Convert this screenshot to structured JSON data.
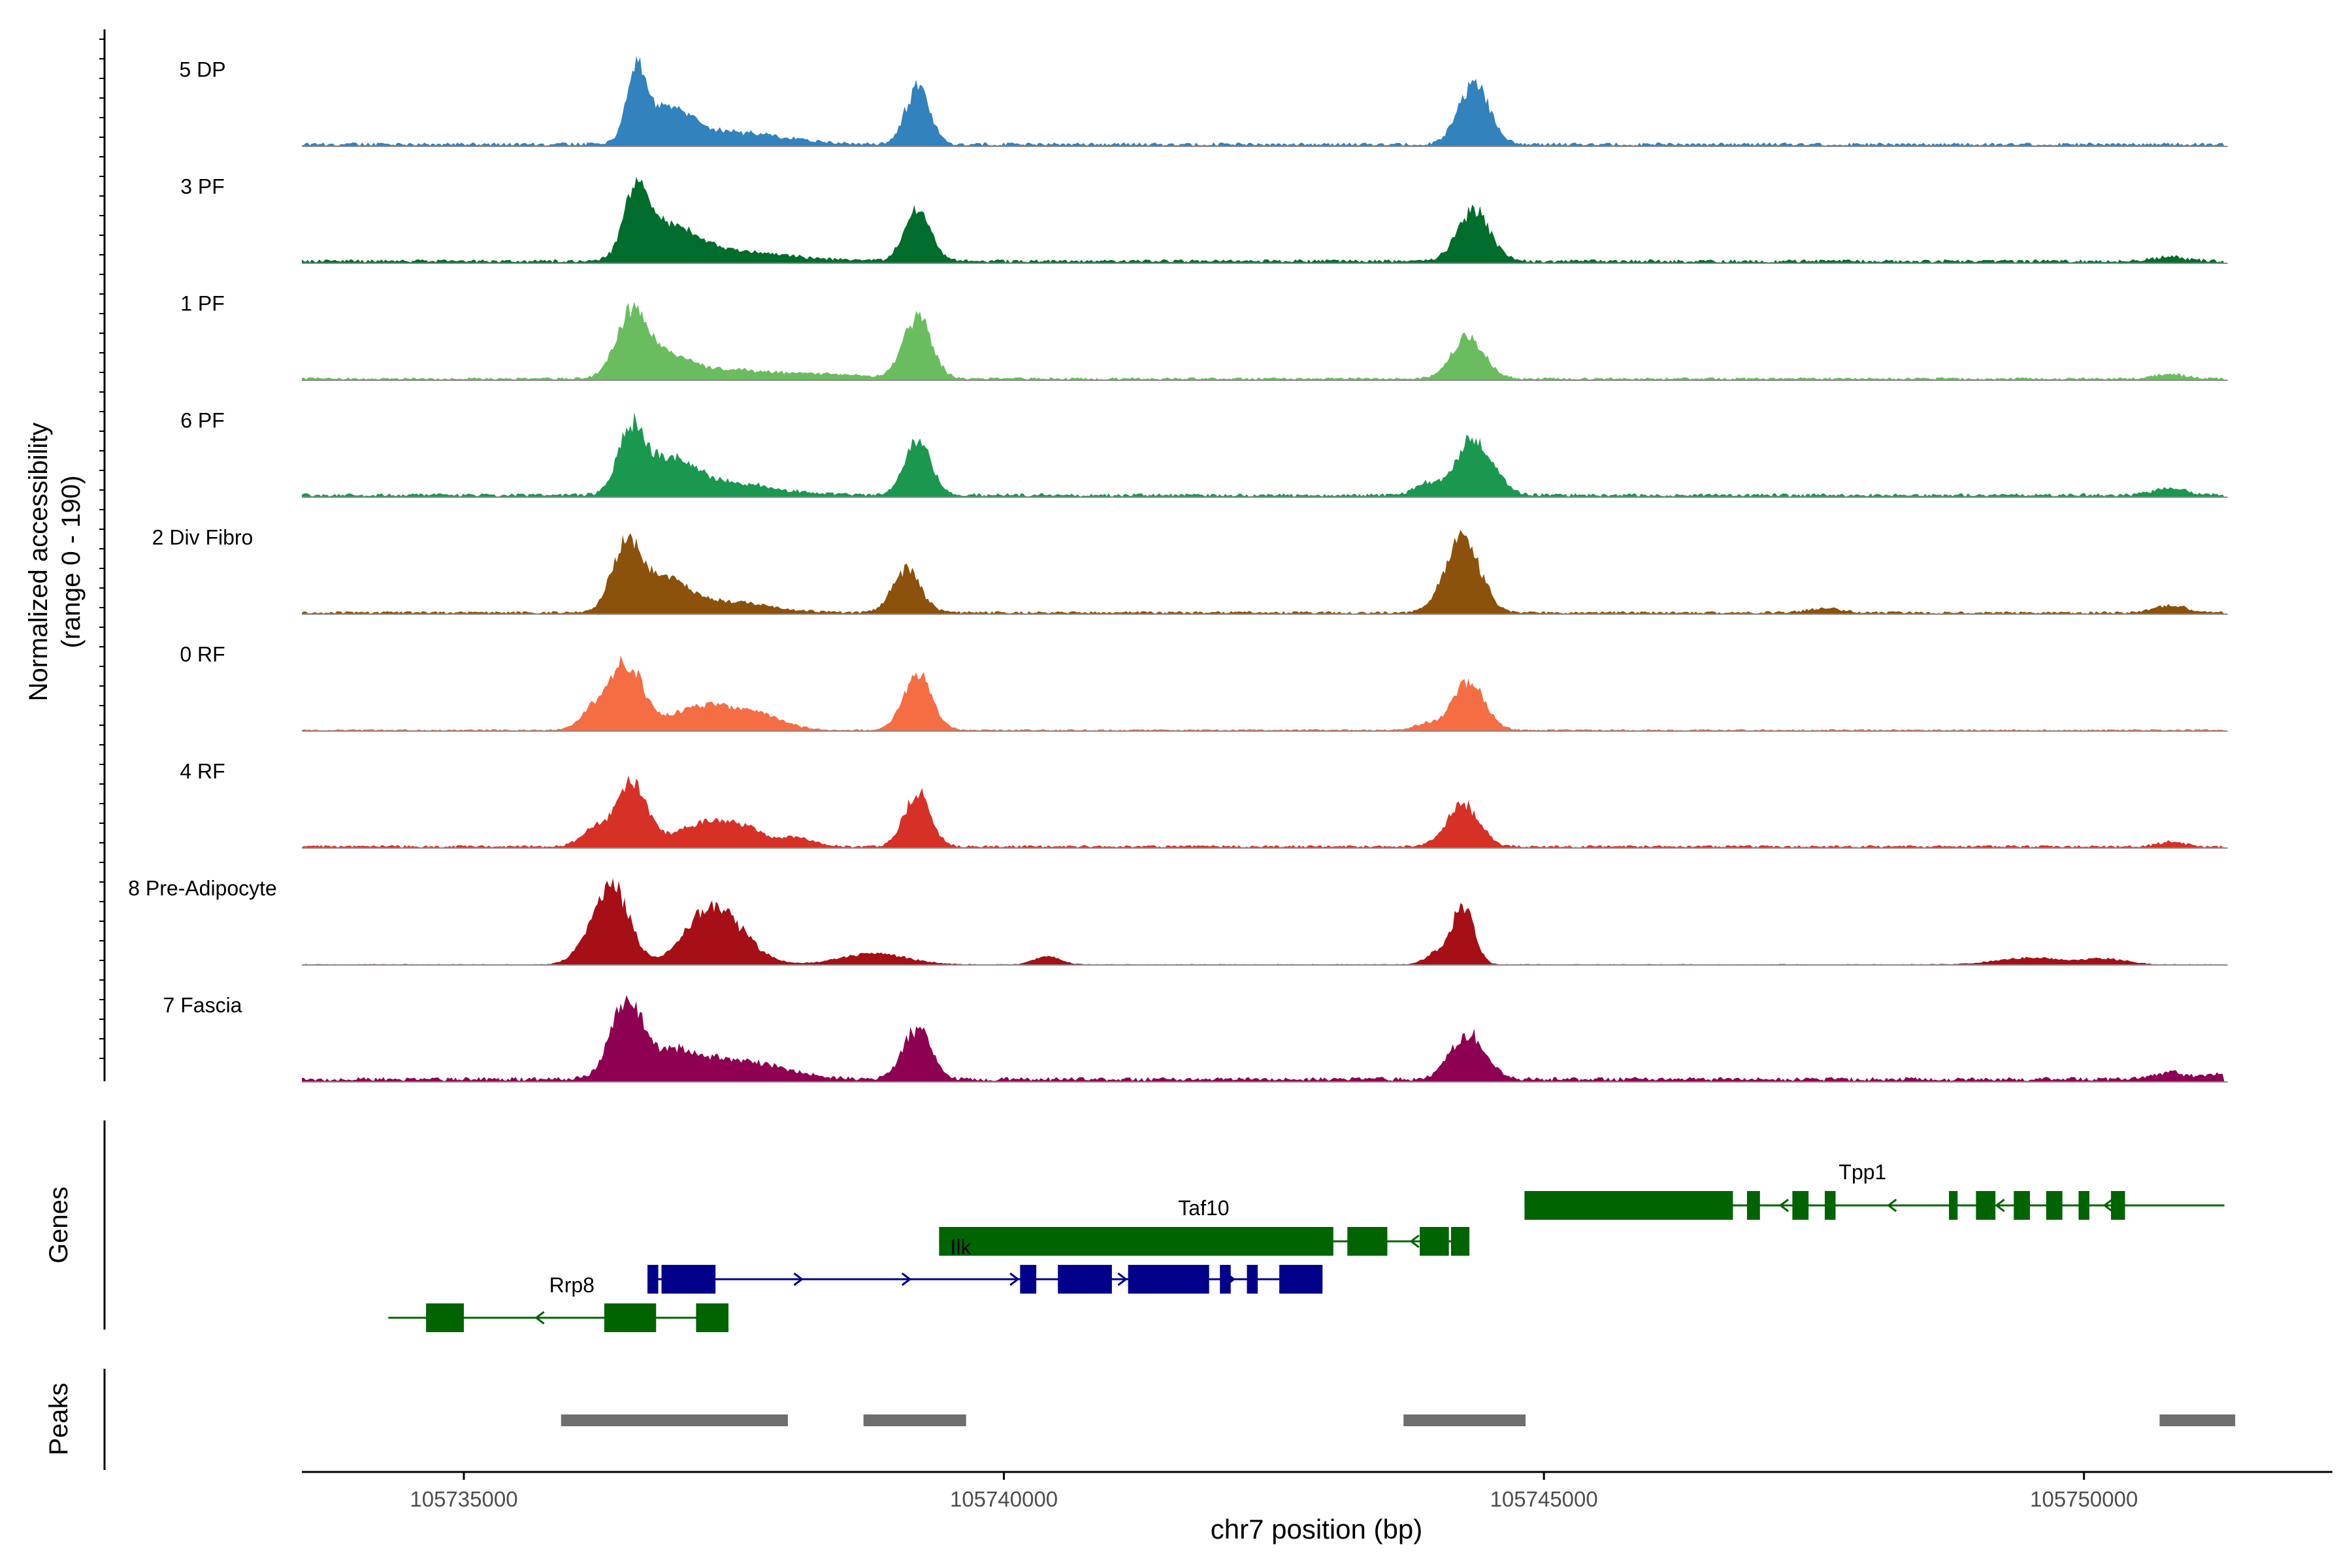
{
  "chart_data": {
    "type": "area",
    "title": "",
    "ylabel_line1": "Normalized accessibility",
    "ylabel_line2": "(range 0 - 190)",
    "xlabel": "chr7 position (bp)",
    "xlim": [
      105733500,
      105752300
    ],
    "ylim": [
      0,
      190
    ],
    "x_ticks": [
      105735000,
      105740000,
      105745000,
      105750000
    ],
    "x_tick_labels": [
      "105735000",
      "105740000",
      "105745000",
      "105750000"
    ],
    "series": [
      {
        "name": "5 DP",
        "color": "#3182BD",
        "peaks": [
          [
            105736600,
            122,
            90
          ],
          [
            105736900,
            60,
            200
          ],
          [
            105737500,
            22,
            450
          ],
          [
            105739200,
            102,
            110
          ],
          [
            105744350,
            108,
            140
          ]
        ],
        "baseline": 4
      },
      {
        "name": "3 PF",
        "color": "#006D2C",
        "peaks": [
          [
            105736600,
            115,
            110
          ],
          [
            105736900,
            55,
            250
          ],
          [
            105737500,
            18,
            500
          ],
          [
            105739200,
            88,
            120
          ],
          [
            105744350,
            90,
            150
          ],
          [
            105750800,
            8,
            150
          ]
        ],
        "baseline": 4
      },
      {
        "name": "1 PF",
        "color": "#6ABD5E",
        "peaks": [
          [
            105736550,
            118,
            140
          ],
          [
            105736900,
            40,
            200
          ],
          [
            105737500,
            15,
            400
          ],
          [
            105738400,
            8,
            300
          ],
          [
            105739200,
            112,
            130
          ],
          [
            105744300,
            72,
            150
          ],
          [
            105750800,
            8,
            150
          ]
        ],
        "baseline": 3
      },
      {
        "name": "6 PF",
        "color": "#1A9850",
        "peaks": [
          [
            105736550,
            110,
            120
          ],
          [
            105736900,
            55,
            220
          ],
          [
            105737400,
            22,
            450
          ],
          [
            105739200,
            100,
            120
          ],
          [
            105744350,
            100,
            170
          ],
          [
            105743900,
            20,
            100
          ],
          [
            105750800,
            12,
            150
          ]
        ],
        "baseline": 4
      },
      {
        "name": "2 Div Fibro",
        "color": "#8C510A",
        "peaks": [
          [
            105736500,
            120,
            130
          ],
          [
            105736850,
            55,
            200
          ],
          [
            105737400,
            20,
            400
          ],
          [
            105739100,
            75,
            130
          ],
          [
            105744250,
            130,
            160
          ],
          [
            105747600,
            8,
            150
          ],
          [
            105750800,
            12,
            150
          ]
        ],
        "baseline": 3
      },
      {
        "name": "0 RF",
        "color": "#F46D43",
        "peaks": [
          [
            105736500,
            118,
            150
          ],
          [
            105736200,
            35,
            120
          ],
          [
            105737200,
            40,
            300
          ],
          [
            105737700,
            25,
            250
          ],
          [
            105739200,
            100,
            130
          ],
          [
            105744300,
            85,
            150
          ],
          [
            105743900,
            10,
            100
          ]
        ],
        "baseline": 2
      },
      {
        "name": "4 RF",
        "color": "#D73027",
        "peaks": [
          [
            105736550,
            110,
            140
          ],
          [
            105736200,
            30,
            120
          ],
          [
            105737200,
            40,
            250
          ],
          [
            105737600,
            28,
            200
          ],
          [
            105738100,
            15,
            150
          ],
          [
            105739200,
            95,
            120
          ],
          [
            105744250,
            75,
            150
          ],
          [
            105750800,
            8,
            120
          ]
        ],
        "baseline": 3
      },
      {
        "name": "8 Pre-Adipocyte",
        "color": "#A50F15",
        "peaks": [
          [
            105736400,
            120,
            150
          ],
          [
            105736200,
            40,
            150
          ],
          [
            105737400,
            70,
            250
          ],
          [
            105737200,
            45,
            200
          ],
          [
            105738800,
            20,
            300
          ],
          [
            105740400,
            15,
            120
          ],
          [
            105744250,
            105,
            100
          ],
          [
            105744000,
            20,
            100
          ],
          [
            105749500,
            12,
            300
          ],
          [
            105750200,
            10,
            200
          ]
        ],
        "baseline": 1
      },
      {
        "name": "7 Fascia",
        "color": "#8E0152",
        "peaks": [
          [
            105736500,
            128,
            140
          ],
          [
            105736900,
            45,
            300
          ],
          [
            105737600,
            30,
            400
          ],
          [
            105739200,
            90,
            130
          ],
          [
            105744300,
            80,
            160
          ],
          [
            105750800,
            12,
            150
          ],
          [
            105751300,
            10,
            150
          ]
        ],
        "baseline": 5
      }
    ],
    "genes": [
      {
        "name": "Taf10",
        "color": "#006400",
        "strand": "-",
        "start": 105739400,
        "end": 105744300,
        "exons": [
          [
            105739400,
            105743050
          ],
          [
            105743180,
            105743550
          ],
          [
            105743850,
            105744120
          ],
          [
            105744140,
            105744310
          ]
        ]
      },
      {
        "name": "Ilk",
        "color": "#00008B",
        "strand": "+",
        "start": 105736700,
        "end": 105742950,
        "exons": [
          [
            105736700,
            105736800
          ],
          [
            105736830,
            105737330
          ],
          [
            105740150,
            105740300
          ],
          [
            105740500,
            105741000
          ],
          [
            105741150,
            105741900
          ],
          [
            105742000,
            105742100
          ],
          [
            105742250,
            105742350
          ],
          [
            105742550,
            105742950
          ]
        ]
      },
      {
        "name": "Rrp8",
        "color": "#006400",
        "strand": "-",
        "start": 105734300,
        "end": 105737450,
        "exons": [
          [
            105734650,
            105735000
          ],
          [
            105736300,
            105736780
          ],
          [
            105737150,
            105737450
          ]
        ]
      },
      {
        "name": "Tpp1",
        "color": "#006400",
        "strand": "-",
        "start": 105744820,
        "end": 105751300,
        "exons": [
          [
            105744820,
            105746750
          ],
          [
            105746880,
            105747000
          ],
          [
            105747300,
            105747450
          ],
          [
            105747600,
            105747700
          ],
          [
            105748750,
            105748830
          ],
          [
            105749000,
            105749180
          ],
          [
            105749350,
            105749500
          ],
          [
            105749650,
            105749800
          ],
          [
            105749950,
            105750050
          ],
          [
            105750250,
            105750380
          ]
        ]
      }
    ],
    "peaks": [
      [
        105735900,
        105738000
      ],
      [
        105738700,
        105739650
      ],
      [
        105743700,
        105744830
      ],
      [
        105750700,
        105751400
      ]
    ],
    "panel_labels": {
      "genes": "Genes",
      "peaks": "Peaks"
    }
  }
}
